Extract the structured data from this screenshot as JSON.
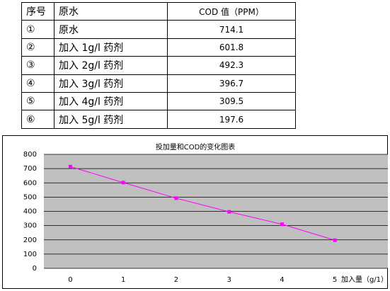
{
  "table": {
    "header": [
      "序号",
      "原水",
      "COD 值（PPM）"
    ],
    "rows": [
      [
        "①",
        "原水",
        "714.1"
      ],
      [
        "②",
        "加入 1g/l 药剂",
        "601.8"
      ],
      [
        "③",
        "加入 2g/l 药剂",
        "492.3"
      ],
      [
        "④",
        "加入 3g/l 药剂",
        "396.7"
      ],
      [
        "⑤",
        "加入 4g/l 药剂",
        "309.5"
      ],
      [
        "⑥",
        "加入 5g/l 药剂",
        "197.6"
      ]
    ]
  },
  "chart_data": {
    "type": "line",
    "title": "投加量和COD的变化图表",
    "x_label": "加入量（g/1）",
    "x": [
      0,
      1,
      2,
      3,
      4,
      5
    ],
    "series": [
      {
        "name": "COD",
        "color": "#ff00ff",
        "values": [
          714.1,
          601.8,
          492.3,
          396.7,
          309.5,
          197.6
        ]
      }
    ],
    "xlim": [
      -0.5,
      6
    ],
    "xticks": [
      0,
      1,
      2,
      3,
      4,
      5
    ],
    "ylim": [
      0,
      800
    ],
    "yticks": [
      0,
      100,
      200,
      300,
      400,
      500,
      600,
      700,
      800
    ],
    "grid": true
  }
}
